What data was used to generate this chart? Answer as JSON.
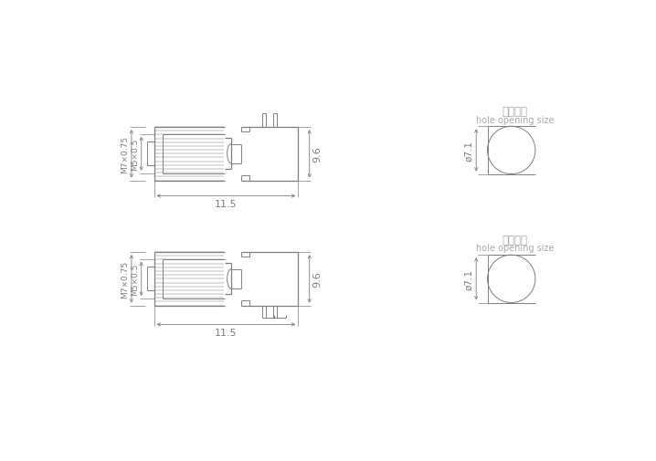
{
  "bg_color": "#ffffff",
  "line_color": "#7f7f7f",
  "dim_color": "#7f7f7f",
  "text_color": "#7f7f7f",
  "title1_cn": "开孔尺寸",
  "title1_en": "hole opening size",
  "title2_cn": "开孔尺寸",
  "title2_en": "hole opening size",
  "dim_115": "11.5",
  "dim_96": "9.6",
  "dim_71": "ø7.1",
  "label_m7": "M7×0.75",
  "label_m5": "M5×0.5",
  "lw": 0.7,
  "lw_thick": 0.9,
  "n_threads": 14
}
